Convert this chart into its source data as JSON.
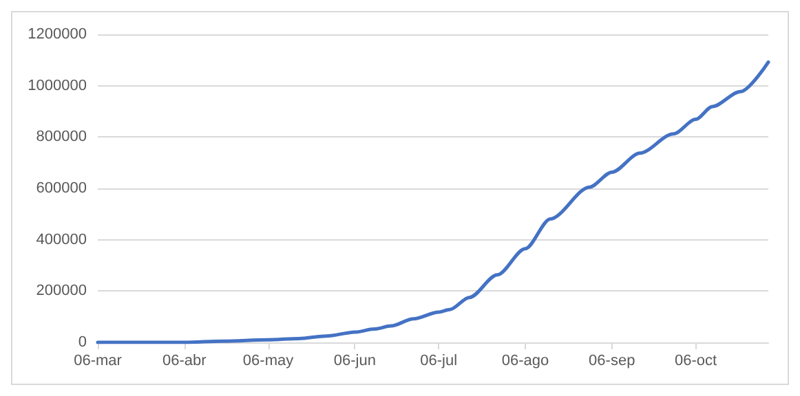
{
  "chart_data": {
    "type": "line",
    "x": [
      "--03-06",
      "--03-20",
      "--04-06",
      "--04-20",
      "--05-06",
      "--05-17",
      "--05-27",
      "--06-06",
      "--06-13",
      "--06-19",
      "--06-27",
      "--07-06",
      "--07-10",
      "--07-17",
      "--07-27",
      "--08-06",
      "--08-15",
      "--08-29",
      "--09-06",
      "--09-16",
      "--09-28",
      "--10-06",
      "--10-12",
      "--10-22",
      "--11-01"
    ],
    "series": [
      {
        "color": "#4472c4",
        "values": [
          0,
          0,
          0,
          5000,
          10000,
          15000,
          25000,
          40000,
          52000,
          64000,
          92000,
          118000,
          128000,
          175000,
          263000,
          365000,
          481000,
          605000,
          663000,
          737000,
          812000,
          869000,
          919000,
          977000,
          1092000
        ]
      }
    ],
    "xlim": [
      "--03-06",
      "--11-01"
    ],
    "xticks": [
      {
        "value": "--03-06",
        "label": "06-mar"
      },
      {
        "value": "--04-06",
        "label": "06-abr"
      },
      {
        "value": "--05-06",
        "label": "06-may"
      },
      {
        "value": "--06-06",
        "label": "06-jun"
      },
      {
        "value": "--07-06",
        "label": "06-jul"
      },
      {
        "value": "--08-06",
        "label": "06-ago"
      },
      {
        "value": "--09-06",
        "label": "06-sep"
      },
      {
        "value": "--10-06",
        "label": "06-oct"
      }
    ],
    "ylim": [
      0,
      1200000
    ],
    "yticks": [
      0,
      200000,
      400000,
      600000,
      800000,
      1000000,
      1200000
    ],
    "grid": "y",
    "marker": "none",
    "line_style": "solid"
  }
}
